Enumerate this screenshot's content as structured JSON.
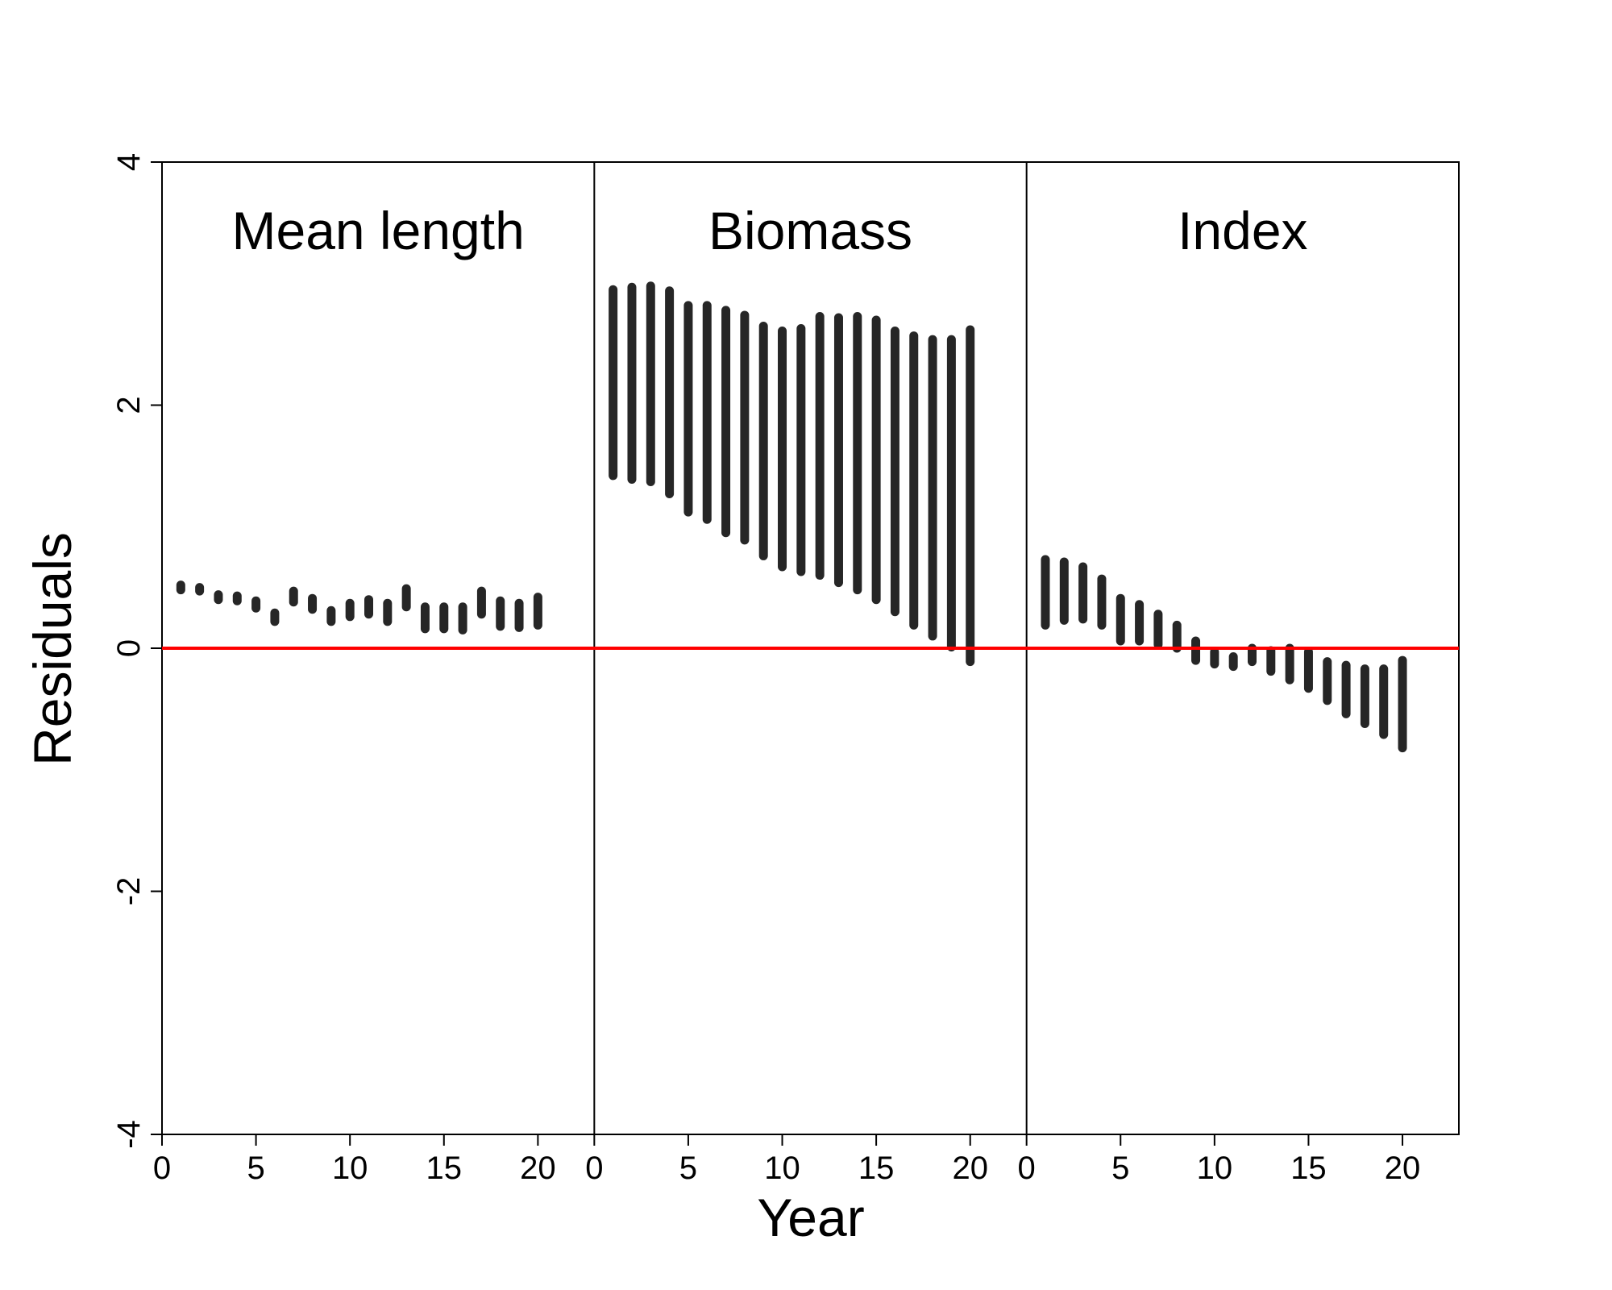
{
  "chart_data": {
    "type": "scatter",
    "ylabel": "Residuals",
    "xlabel": "Year",
    "ylim": [
      -4,
      4
    ],
    "yticks": [
      -4,
      -2,
      0,
      2,
      4
    ],
    "xlim": [
      0,
      23
    ],
    "xticks": [
      0,
      5,
      10,
      15,
      20
    ],
    "reference_line": {
      "y": 0,
      "color": "#ff0000"
    },
    "mark_color": "#262626",
    "panels": [
      {
        "title": "Mean length",
        "x": [
          1,
          2,
          3,
          4,
          5,
          6,
          7,
          8,
          9,
          10,
          11,
          12,
          13,
          14,
          15,
          16,
          17,
          18,
          19,
          20
        ],
        "low": [
          0.48,
          0.47,
          0.4,
          0.39,
          0.33,
          0.22,
          0.38,
          0.32,
          0.22,
          0.26,
          0.28,
          0.22,
          0.34,
          0.16,
          0.16,
          0.15,
          0.28,
          0.18,
          0.17,
          0.19
        ],
        "high": [
          0.52,
          0.5,
          0.44,
          0.43,
          0.39,
          0.29,
          0.47,
          0.41,
          0.31,
          0.37,
          0.4,
          0.37,
          0.49,
          0.34,
          0.34,
          0.34,
          0.47,
          0.39,
          0.37,
          0.42
        ]
      },
      {
        "title": "Biomass",
        "x": [
          1,
          2,
          3,
          4,
          5,
          6,
          7,
          8,
          9,
          10,
          11,
          12,
          13,
          14,
          15,
          16,
          17,
          18,
          19,
          20
        ],
        "low": [
          1.42,
          1.39,
          1.37,
          1.27,
          1.12,
          1.06,
          0.95,
          0.89,
          0.76,
          0.67,
          0.63,
          0.6,
          0.54,
          0.48,
          0.4,
          0.3,
          0.19,
          0.1,
          0.01,
          -0.11
        ],
        "high": [
          2.95,
          2.97,
          2.98,
          2.94,
          2.82,
          2.82,
          2.78,
          2.74,
          2.65,
          2.61,
          2.63,
          2.73,
          2.72,
          2.73,
          2.7,
          2.61,
          2.57,
          2.54,
          2.54,
          2.62
        ]
      },
      {
        "title": "Index",
        "x": [
          1,
          2,
          3,
          4,
          5,
          6,
          7,
          8,
          9,
          10,
          11,
          12,
          13,
          14,
          15,
          16,
          17,
          18,
          19,
          20
        ],
        "low": [
          0.19,
          0.23,
          0.24,
          0.19,
          0.06,
          0.06,
          0.03,
          0.0,
          -0.1,
          -0.13,
          -0.15,
          -0.11,
          -0.19,
          -0.26,
          -0.33,
          -0.43,
          -0.54,
          -0.62,
          -0.71,
          -0.82
        ],
        "high": [
          0.73,
          0.71,
          0.67,
          0.57,
          0.41,
          0.36,
          0.28,
          0.19,
          0.06,
          -0.03,
          -0.07,
          0.0,
          -0.02,
          0.0,
          -0.03,
          -0.11,
          -0.14,
          -0.17,
          -0.17,
          -0.1
        ]
      }
    ]
  }
}
